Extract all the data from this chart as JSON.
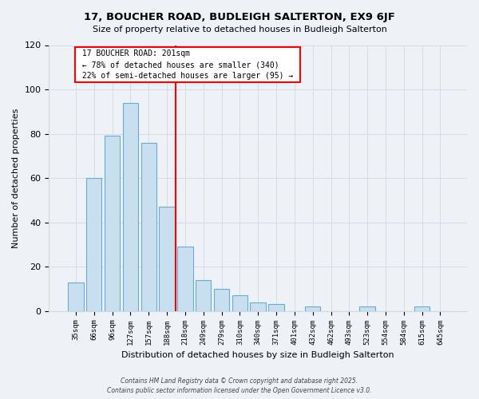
{
  "title": "17, BOUCHER ROAD, BUDLEIGH SALTERTON, EX9 6JF",
  "subtitle": "Size of property relative to detached houses in Budleigh Salterton",
  "xlabel": "Distribution of detached houses by size in Budleigh Salterton",
  "ylabel": "Number of detached properties",
  "bar_labels": [
    "35sqm",
    "66sqm",
    "96sqm",
    "127sqm",
    "157sqm",
    "188sqm",
    "218sqm",
    "249sqm",
    "279sqm",
    "310sqm",
    "340sqm",
    "371sqm",
    "401sqm",
    "432sqm",
    "462sqm",
    "493sqm",
    "523sqm",
    "554sqm",
    "584sqm",
    "615sqm",
    "645sqm"
  ],
  "bar_values": [
    13,
    60,
    79,
    94,
    76,
    47,
    29,
    14,
    10,
    7,
    4,
    3,
    0,
    2,
    0,
    0,
    2,
    0,
    0,
    2,
    0
  ],
  "bar_color": "#c8dff0",
  "bar_edge_color": "#6aaad4",
  "redline_index": 5.5,
  "redline_label": "17 BOUCHER ROAD: 201sqm",
  "annotation_smaller": "← 78% of detached houses are smaller (340)",
  "annotation_larger": "22% of semi-detached houses are larger (95) →",
  "ylim": [
    0,
    120
  ],
  "yticks": [
    0,
    20,
    40,
    60,
    80,
    100,
    120
  ],
  "background_color": "#eef2f7",
  "grid_color": "#d0d8e4",
  "footer1": "Contains HM Land Registry data © Crown copyright and database right 2025.",
  "footer2": "Contains public sector information licensed under the Open Government Licence v3.0."
}
